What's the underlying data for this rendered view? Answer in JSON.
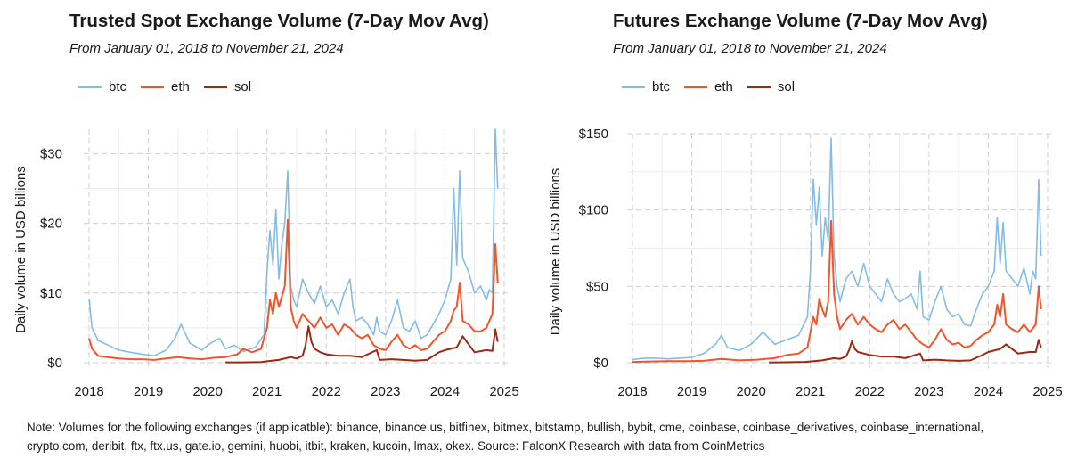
{
  "colors": {
    "btc": "#85bce6",
    "eth": "#f0562e",
    "sol": "#9a2a12"
  },
  "note": "Note: Volumes for the following exchanges (if applicatble): binance, binance.us, bitfinex, bitmex, bitstamp, bullish, bybit, cme, coinbase, coinbase_derivatives, coinbase_international, crypto.com, deribit, ftx, ftx.us, gate.io, gemini, huobi, itbit, kraken, kucoin, lmax, okex. Source: FalconX Research with data from CoinMetrics",
  "chart_data": [
    {
      "type": "line",
      "title": "Trusted Spot Exchange Volume (7-Day Mov Avg)",
      "subtitle": "From January 01, 2018 to November 21, 2024",
      "ylabel": "Daily volume in USD billions",
      "xlabel": "",
      "x_ticks": [
        "2018",
        "2019",
        "2020",
        "2021",
        "2022",
        "2023",
        "2024",
        "2025"
      ],
      "y_ticks": [
        "$0",
        "$10",
        "$20",
        "$30"
      ],
      "y_tick_values": [
        0,
        10,
        20,
        30
      ],
      "xlim": [
        2018.0,
        2025.0
      ],
      "ylim": [
        0,
        33.5
      ],
      "legend_position": "top-left",
      "series": [
        {
          "name": "btc",
          "x": [
            2018.0,
            2018.05,
            2018.15,
            2018.3,
            2018.5,
            2018.7,
            2018.9,
            2019.1,
            2019.3,
            2019.45,
            2019.55,
            2019.7,
            2019.9,
            2020.05,
            2020.2,
            2020.3,
            2020.45,
            2020.6,
            2020.8,
            2020.95,
            2021.0,
            2021.05,
            2021.1,
            2021.15,
            2021.2,
            2021.25,
            2021.3,
            2021.35,
            2021.4,
            2021.45,
            2021.5,
            2021.6,
            2021.7,
            2021.8,
            2021.9,
            2022.0,
            2022.1,
            2022.2,
            2022.3,
            2022.4,
            2022.45,
            2022.5,
            2022.6,
            2022.7,
            2022.8,
            2022.85,
            2022.9,
            2023.0,
            2023.1,
            2023.2,
            2023.3,
            2023.4,
            2023.5,
            2023.6,
            2023.7,
            2023.8,
            2023.9,
            2024.0,
            2024.1,
            2024.15,
            2024.2,
            2024.25,
            2024.3,
            2024.4,
            2024.5,
            2024.6,
            2024.7,
            2024.75,
            2024.8,
            2024.85,
            2024.89
          ],
          "values": [
            9.2,
            5.0,
            3.2,
            2.6,
            1.8,
            1.5,
            1.2,
            1.0,
            1.8,
            3.5,
            5.5,
            2.8,
            1.8,
            2.8,
            3.5,
            2.0,
            2.5,
            1.6,
            2.2,
            4.0,
            13.0,
            19.0,
            14.0,
            22.0,
            12.0,
            17.0,
            20.0,
            27.5,
            11.0,
            9.0,
            8.0,
            12.0,
            10.0,
            8.5,
            11.0,
            8.0,
            9.0,
            7.0,
            10.0,
            12.0,
            8.0,
            6.0,
            6.5,
            5.5,
            4.0,
            6.5,
            4.5,
            4.0,
            6.0,
            9.0,
            5.0,
            4.5,
            6.0,
            3.5,
            4.0,
            5.5,
            7.0,
            9.0,
            12.0,
            25.0,
            14.0,
            27.5,
            15.0,
            13.0,
            10.0,
            11.0,
            9.0,
            10.5,
            10.0,
            33.5,
            25.0
          ]
        },
        {
          "name": "eth",
          "x": [
            2018.0,
            2018.05,
            2018.15,
            2018.3,
            2018.5,
            2018.7,
            2018.9,
            2019.1,
            2019.3,
            2019.5,
            2019.7,
            2019.9,
            2020.1,
            2020.3,
            2020.5,
            2020.6,
            2020.75,
            2020.9,
            2021.0,
            2021.05,
            2021.1,
            2021.15,
            2021.2,
            2021.25,
            2021.3,
            2021.35,
            2021.4,
            2021.45,
            2021.5,
            2021.6,
            2021.7,
            2021.8,
            2021.9,
            2022.0,
            2022.1,
            2022.2,
            2022.3,
            2022.4,
            2022.5,
            2022.6,
            2022.7,
            2022.8,
            2022.9,
            2023.0,
            2023.1,
            2023.2,
            2023.3,
            2023.4,
            2023.5,
            2023.6,
            2023.7,
            2023.8,
            2023.9,
            2024.0,
            2024.1,
            2024.15,
            2024.2,
            2024.25,
            2024.3,
            2024.4,
            2024.5,
            2024.6,
            2024.7,
            2024.8,
            2024.85,
            2024.89
          ],
          "values": [
            3.5,
            2.0,
            1.0,
            0.8,
            0.6,
            0.5,
            0.5,
            0.4,
            0.6,
            0.8,
            0.6,
            0.5,
            0.7,
            0.8,
            1.2,
            2.0,
            1.5,
            2.0,
            5.0,
            9.0,
            7.0,
            10.0,
            8.0,
            9.5,
            11.0,
            20.5,
            8.0,
            6.0,
            5.0,
            7.0,
            6.0,
            5.0,
            6.5,
            5.0,
            5.5,
            4.0,
            5.5,
            5.0,
            4.0,
            3.5,
            4.0,
            2.5,
            2.0,
            1.8,
            3.0,
            4.0,
            2.5,
            2.0,
            2.5,
            1.8,
            2.0,
            3.0,
            4.0,
            4.5,
            6.0,
            7.5,
            8.0,
            11.5,
            6.0,
            5.5,
            4.5,
            4.5,
            5.0,
            7.0,
            17.0,
            11.5
          ]
        },
        {
          "name": "sol",
          "x": [
            2020.3,
            2020.6,
            2020.9,
            2021.0,
            2021.2,
            2021.4,
            2021.5,
            2021.6,
            2021.65,
            2021.7,
            2021.75,
            2021.8,
            2021.9,
            2022.0,
            2022.2,
            2022.4,
            2022.6,
            2022.85,
            2022.9,
            2023.1,
            2023.3,
            2023.5,
            2023.7,
            2023.9,
            2024.0,
            2024.2,
            2024.3,
            2024.5,
            2024.7,
            2024.8,
            2024.85,
            2024.89
          ],
          "values": [
            0.05,
            0.05,
            0.1,
            0.2,
            0.4,
            0.8,
            0.6,
            1.0,
            2.5,
            5.2,
            3.0,
            2.0,
            1.5,
            1.2,
            1.0,
            1.0,
            0.8,
            1.8,
            0.4,
            0.5,
            0.4,
            0.3,
            0.4,
            1.5,
            1.8,
            2.2,
            3.8,
            1.5,
            1.8,
            1.7,
            4.8,
            3.0
          ]
        }
      ]
    },
    {
      "type": "line",
      "title": "Futures Exchange Volume (7-Day Mov Avg)",
      "subtitle": "From January 01, 2018 to November 21, 2024",
      "ylabel": "Daily volume in USD billions",
      "xlabel": "",
      "x_ticks": [
        "2018",
        "2019",
        "2020",
        "2021",
        "2022",
        "2023",
        "2024",
        "2025"
      ],
      "y_ticks": [
        "$0",
        "$50",
        "$100",
        "$150"
      ],
      "y_tick_values": [
        0,
        50,
        100,
        150
      ],
      "xlim": [
        2018.0,
        2025.0
      ],
      "ylim": [
        0,
        150
      ],
      "legend_position": "top-left",
      "series": [
        {
          "name": "btc",
          "x": [
            2018.0,
            2018.2,
            2018.4,
            2018.6,
            2018.8,
            2019.0,
            2019.2,
            2019.4,
            2019.5,
            2019.6,
            2019.8,
            2020.0,
            2020.2,
            2020.4,
            2020.6,
            2020.8,
            2020.95,
            2021.0,
            2021.05,
            2021.1,
            2021.15,
            2021.2,
            2021.25,
            2021.3,
            2021.35,
            2021.4,
            2021.45,
            2021.5,
            2021.6,
            2021.7,
            2021.8,
            2021.9,
            2022.0,
            2022.1,
            2022.2,
            2022.3,
            2022.4,
            2022.5,
            2022.6,
            2022.7,
            2022.8,
            2022.85,
            2022.9,
            2023.0,
            2023.1,
            2023.2,
            2023.3,
            2023.4,
            2023.5,
            2023.6,
            2023.7,
            2023.8,
            2023.9,
            2024.0,
            2024.1,
            2024.15,
            2024.2,
            2024.25,
            2024.3,
            2024.4,
            2024.5,
            2024.6,
            2024.7,
            2024.75,
            2024.8,
            2024.85,
            2024.89
          ],
          "values": [
            2.0,
            3.0,
            3.0,
            2.5,
            3.0,
            3.5,
            6.0,
            12.0,
            18.0,
            10.0,
            8.0,
            12.0,
            20.0,
            12.0,
            15.0,
            18.0,
            30.0,
            60.0,
            120.0,
            90.0,
            115.0,
            70.0,
            95.0,
            80.0,
            147.0,
            70.0,
            50.0,
            40.0,
            55.0,
            60.0,
            50.0,
            65.0,
            50.0,
            45.0,
            40.0,
            55.0,
            45.0,
            40.0,
            42.0,
            45.0,
            35.0,
            60.0,
            30.0,
            28.0,
            40.0,
            50.0,
            35.0,
            30.0,
            32.0,
            25.0,
            24.0,
            35.0,
            45.0,
            50.0,
            60.0,
            95.0,
            65.0,
            92.0,
            60.0,
            55.0,
            50.0,
            62.0,
            45.0,
            60.0,
            55.0,
            120.0,
            70.0
          ]
        },
        {
          "name": "eth",
          "x": [
            2018.0,
            2018.3,
            2018.6,
            2018.9,
            2019.2,
            2019.5,
            2019.8,
            2020.1,
            2020.4,
            2020.6,
            2020.8,
            2020.95,
            2021.0,
            2021.05,
            2021.1,
            2021.15,
            2021.2,
            2021.25,
            2021.3,
            2021.35,
            2021.4,
            2021.45,
            2021.5,
            2021.6,
            2021.7,
            2021.8,
            2021.9,
            2022.0,
            2022.1,
            2022.2,
            2022.3,
            2022.4,
            2022.5,
            2022.6,
            2022.7,
            2022.8,
            2022.9,
            2023.0,
            2023.1,
            2023.2,
            2023.3,
            2023.4,
            2023.5,
            2023.6,
            2023.7,
            2023.8,
            2023.9,
            2024.0,
            2024.1,
            2024.15,
            2024.2,
            2024.25,
            2024.3,
            2024.4,
            2024.5,
            2024.6,
            2024.7,
            2024.8,
            2024.85,
            2024.89
          ],
          "values": [
            0.5,
            0.8,
            1.0,
            1.0,
            1.2,
            2.5,
            1.5,
            2.0,
            3.0,
            5.0,
            6.0,
            10.0,
            20.0,
            30.0,
            25.0,
            42.0,
            35.0,
            30.0,
            40.0,
            93.0,
            45.0,
            30.0,
            22.0,
            28.0,
            32.0,
            25.0,
            30.0,
            25.0,
            22.0,
            20.0,
            25.0,
            28.0,
            22.0,
            25.0,
            20.0,
            15.0,
            12.0,
            10.0,
            15.0,
            22.0,
            15.0,
            12.0,
            13.0,
            10.0,
            11.0,
            15.0,
            18.0,
            20.0,
            25.0,
            38.0,
            30.0,
            45.0,
            25.0,
            22.0,
            20.0,
            25.0,
            20.0,
            25.0,
            50.0,
            35.0
          ]
        },
        {
          "name": "sol",
          "x": [
            2020.3,
            2020.6,
            2020.9,
            2021.0,
            2021.2,
            2021.4,
            2021.5,
            2021.6,
            2021.65,
            2021.7,
            2021.75,
            2021.8,
            2021.9,
            2022.0,
            2022.2,
            2022.4,
            2022.6,
            2022.85,
            2022.9,
            2023.1,
            2023.3,
            2023.5,
            2023.7,
            2023.9,
            2024.0,
            2024.2,
            2024.3,
            2024.5,
            2024.7,
            2024.8,
            2024.85,
            2024.89
          ],
          "values": [
            0.2,
            0.3,
            0.5,
            0.8,
            1.5,
            3.0,
            2.5,
            4.0,
            8.0,
            14.0,
            9.0,
            7.0,
            6.0,
            5.0,
            4.0,
            4.0,
            3.0,
            6.0,
            1.5,
            2.0,
            1.5,
            1.2,
            1.5,
            5.0,
            7.0,
            9.0,
            12.0,
            6.0,
            7.0,
            7.0,
            15.0,
            10.0
          ]
        }
      ]
    }
  ]
}
